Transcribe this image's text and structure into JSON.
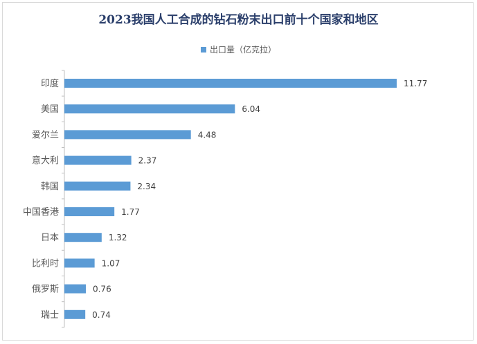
{
  "chart_data": {
    "type": "bar",
    "orientation": "horizontal",
    "title": "2023我国人工合成的钻石粉末出口前十个国家和地区",
    "legend_position": "top",
    "categories": [
      "印度",
      "美国",
      "爱尔兰",
      "意大利",
      "韩国",
      "中国香港",
      "日本",
      "比利时",
      "俄罗斯",
      "瑞士"
    ],
    "series": [
      {
        "name": "出口量（亿克拉）",
        "values": [
          11.77,
          6.04,
          4.48,
          2.37,
          2.34,
          1.77,
          1.32,
          1.07,
          0.76,
          0.74
        ],
        "value_labels": [
          "11.77",
          "6.04",
          "4.48",
          "2.37",
          "2.34",
          "1.77",
          "1.32",
          "1.07",
          "0.76",
          "0.74"
        ],
        "color": "#5b9bd5"
      }
    ],
    "xlim": [
      0,
      11.77
    ],
    "grid": false
  }
}
